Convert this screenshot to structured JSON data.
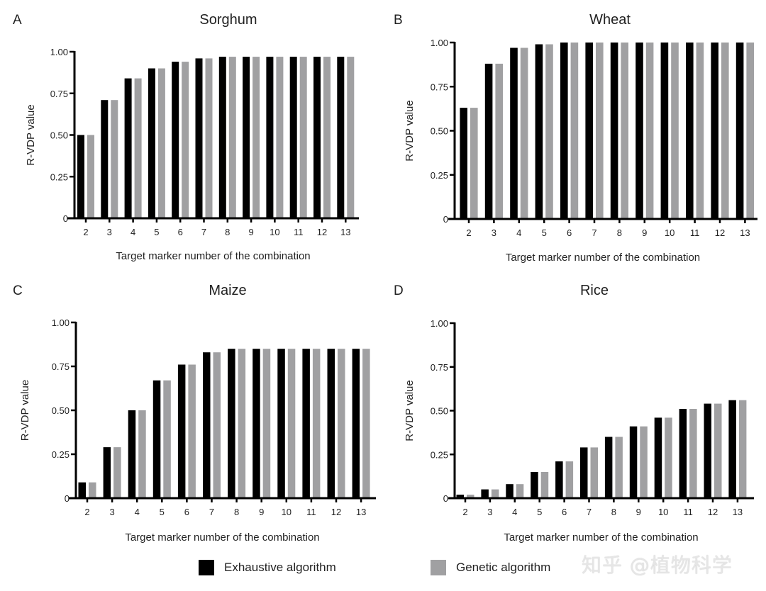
{
  "legend": {
    "items": [
      {
        "label": "Exhaustive algorithm",
        "color": "#000000"
      },
      {
        "label": "Genetic algorithm",
        "color": "#a0a0a2"
      }
    ]
  },
  "watermark": "知乎 @植物科学",
  "chart_data": [
    {
      "panel": "A",
      "type": "bar",
      "title": "Sorghum",
      "xlabel": "Target marker number of the combination",
      "ylabel": "R-VDP value",
      "ylim": [
        0,
        1
      ],
      "yticks": [
        "0",
        "0.25",
        "0.50",
        "0.75",
        "1.00"
      ],
      "categories": [
        "2",
        "3",
        "4",
        "5",
        "6",
        "7",
        "8",
        "9",
        "10",
        "11",
        "12",
        "13"
      ],
      "series": [
        {
          "name": "Exhaustive algorithm",
          "values": [
            0.5,
            0.71,
            0.84,
            0.9,
            0.94,
            0.96,
            0.97,
            0.97,
            0.97,
            0.97,
            0.97,
            0.97
          ]
        },
        {
          "name": "Genetic algorithm",
          "values": [
            0.5,
            0.71,
            0.84,
            0.9,
            0.94,
            0.96,
            0.97,
            0.97,
            0.97,
            0.97,
            0.97,
            0.97
          ]
        }
      ]
    },
    {
      "panel": "B",
      "type": "bar",
      "title": "Wheat",
      "xlabel": "Target marker number of the combination",
      "ylabel": "R-VDP value",
      "ylim": [
        0,
        1
      ],
      "yticks": [
        "0",
        "0.25",
        "0.50",
        "0.75",
        "1.00"
      ],
      "categories": [
        "2",
        "3",
        "4",
        "5",
        "6",
        "7",
        "8",
        "9",
        "10",
        "11",
        "12",
        "13"
      ],
      "series": [
        {
          "name": "Exhaustive algorithm",
          "values": [
            0.63,
            0.88,
            0.97,
            0.99,
            1.0,
            1.0,
            1.0,
            1.0,
            1.0,
            1.0,
            1.0,
            1.0
          ]
        },
        {
          "name": "Genetic algorithm",
          "values": [
            0.63,
            0.88,
            0.97,
            0.99,
            1.0,
            1.0,
            1.0,
            1.0,
            1.0,
            1.0,
            1.0,
            1.0
          ]
        }
      ]
    },
    {
      "panel": "C",
      "type": "bar",
      "title": "Maize",
      "xlabel": "Target marker number of the combination",
      "ylabel": "R-VDP value",
      "ylim": [
        0,
        1
      ],
      "yticks": [
        "0",
        "0.25",
        "0.50",
        "0.75",
        "1.00"
      ],
      "categories": [
        "2",
        "3",
        "4",
        "5",
        "6",
        "7",
        "8",
        "9",
        "10",
        "11",
        "12",
        "13"
      ],
      "series": [
        {
          "name": "Exhaustive algorithm",
          "values": [
            0.09,
            0.29,
            0.5,
            0.67,
            0.76,
            0.83,
            0.85,
            0.85,
            0.85,
            0.85,
            0.85,
            0.85
          ]
        },
        {
          "name": "Genetic algorithm",
          "values": [
            0.09,
            0.29,
            0.5,
            0.67,
            0.76,
            0.83,
            0.85,
            0.85,
            0.85,
            0.85,
            0.85,
            0.85
          ]
        }
      ]
    },
    {
      "panel": "D",
      "type": "bar",
      "title": "Rice",
      "xlabel": "Target marker number of the combination",
      "ylabel": "R-VDP value",
      "ylim": [
        0,
        1
      ],
      "yticks": [
        "0",
        "0.25",
        "0.50",
        "0.75",
        "1.00"
      ],
      "categories": [
        "2",
        "3",
        "4",
        "5",
        "6",
        "7",
        "8",
        "9",
        "10",
        "11",
        "12",
        "13"
      ],
      "series": [
        {
          "name": "Exhaustive algorithm",
          "values": [
            0.02,
            0.05,
            0.08,
            0.15,
            0.21,
            0.29,
            0.35,
            0.41,
            0.46,
            0.51,
            0.54,
            0.56
          ]
        },
        {
          "name": "Genetic algorithm",
          "values": [
            0.02,
            0.05,
            0.08,
            0.15,
            0.21,
            0.29,
            0.35,
            0.41,
            0.46,
            0.51,
            0.54,
            0.56
          ]
        }
      ]
    }
  ]
}
